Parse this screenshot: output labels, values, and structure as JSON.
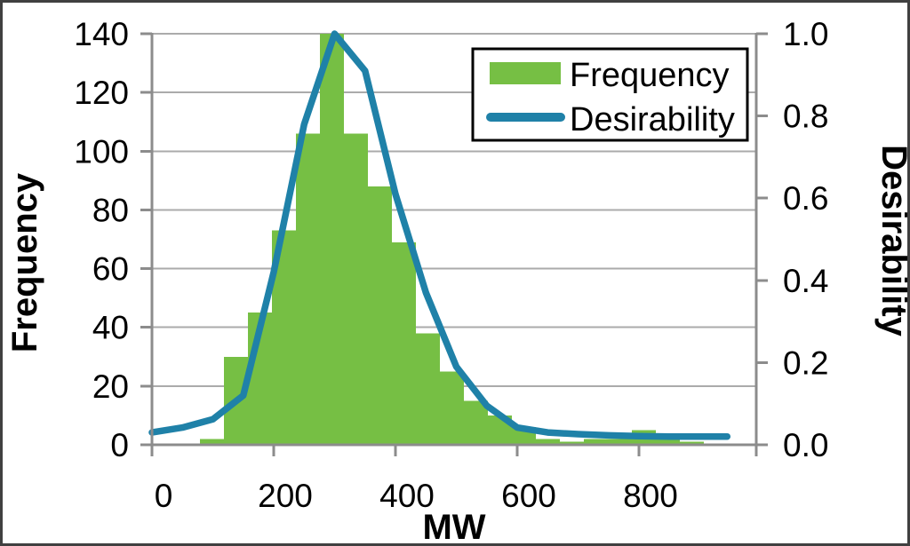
{
  "chart_data": {
    "type": "histogram_with_line",
    "x_axis": {
      "title": "MW",
      "tick_labels": [
        "0",
        "200",
        "400",
        "600",
        "800"
      ],
      "tick_values": [
        0,
        200,
        400,
        600,
        800
      ],
      "range": [
        0,
        993
      ]
    },
    "y_left_axis": {
      "title": "Frequency",
      "tick_labels": [
        "0",
        "20",
        "40",
        "60",
        "80",
        "100",
        "120",
        "140"
      ],
      "tick_values": [
        0,
        20,
        40,
        60,
        80,
        100,
        120,
        140
      ],
      "range": [
        0,
        140
      ]
    },
    "y_right_axis": {
      "title": "Desirability",
      "tick_labels": [
        "0.0",
        "0.2",
        "0.4",
        "0.6",
        "0.8",
        "1.0"
      ],
      "tick_values": [
        0,
        0.2,
        0.4,
        0.6,
        0.8,
        1.0
      ],
      "range": [
        0,
        1
      ]
    },
    "legend": {
      "position": "top-right-inside",
      "items": [
        {
          "label": "Frequency",
          "marker": "bar-swatch",
          "color": "#76BF44"
        },
        {
          "label": "Desirability",
          "marker": "line-swatch",
          "color": "#1F81A8"
        }
      ]
    },
    "histogram": {
      "series": "Frequency",
      "color": "#76BF44",
      "bin_start_mw": 79,
      "bin_width_mw": 39.4,
      "frequencies": [
        2,
        30,
        45,
        73,
        106,
        140,
        106,
        88,
        69,
        38,
        25,
        15,
        10,
        6,
        2,
        1,
        2,
        2,
        5,
        2,
        1
      ]
    },
    "line": {
      "series": "Desirability",
      "color": "#1F81A8",
      "points_mw_desirability": [
        [
          0,
          0.03
        ],
        [
          50,
          0.042
        ],
        [
          100,
          0.062
        ],
        [
          150,
          0.12
        ],
        [
          200,
          0.42
        ],
        [
          250,
          0.78
        ],
        [
          300,
          1.0
        ],
        [
          350,
          0.91
        ],
        [
          400,
          0.61
        ],
        [
          450,
          0.37
        ],
        [
          500,
          0.19
        ],
        [
          550,
          0.095
        ],
        [
          600,
          0.042
        ],
        [
          650,
          0.03
        ],
        [
          700,
          0.026
        ],
        [
          750,
          0.023
        ],
        [
          800,
          0.021
        ],
        [
          850,
          0.02
        ],
        [
          900,
          0.02
        ],
        [
          945,
          0.02
        ]
      ]
    },
    "grid": {
      "horizontal_interval": 20,
      "vertical": false
    },
    "colors": {
      "axis": "#8C8C8C",
      "grid": "#ABABAB",
      "text": "#000000",
      "frame": "#404040",
      "background": "#FFFFFF",
      "legend_border": "#000000"
    }
  }
}
